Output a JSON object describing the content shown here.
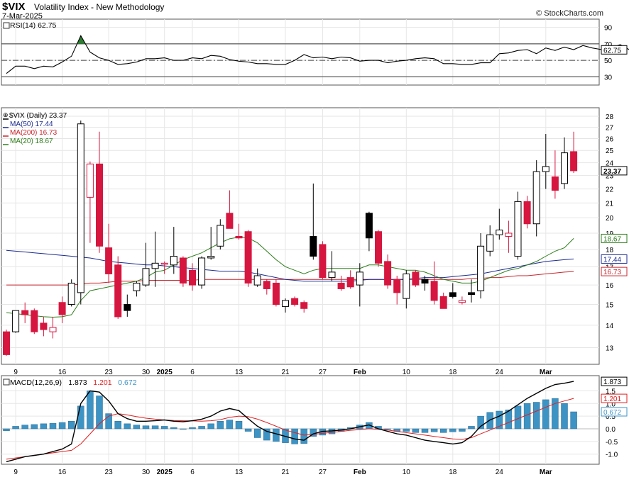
{
  "header": {
    "symbol": "$VIX",
    "name": "Volatility Index - New Methodology",
    "date": "7-Mar-2025",
    "brand": "© StockCharts.com"
  },
  "colors": {
    "up_fill": "#ffffff",
    "down_fill": "#d6163f",
    "black_candle": "#000000",
    "ma50": "#1b2a8f",
    "ma200": "#c8252c",
    "ma20": "#2e7d1c",
    "macd_hist": "#3d93c4",
    "macd_line": "#000000",
    "macd_signal": "#e02020",
    "rsi_line": "#000000",
    "rsi_fill": "#2f7d32",
    "grid": "#e6e6e6"
  },
  "chart_data": [
    {
      "type": "line",
      "panel": "RSI",
      "label": "RSI(14) 62.75",
      "ylim": [
        20,
        100
      ],
      "yticks": [
        30,
        50,
        70,
        90
      ],
      "reference_lines": [
        30,
        50,
        70
      ],
      "last_value_label": "62.75",
      "values": [
        34,
        43,
        43,
        40,
        43,
        42,
        48,
        55,
        80,
        60,
        53,
        50,
        45,
        46,
        48,
        52,
        52,
        53,
        50,
        50,
        53,
        52,
        56,
        55,
        51,
        49,
        48,
        46,
        46,
        45,
        45,
        50,
        57,
        53,
        54,
        52,
        54,
        53,
        49,
        50,
        50,
        47,
        49,
        50,
        52,
        53,
        52,
        46,
        46,
        45,
        45,
        47,
        47,
        58,
        59,
        62,
        63,
        58,
        65,
        62,
        66,
        63,
        68,
        65,
        63,
        65,
        69,
        62.75
      ]
    },
    {
      "type": "candlestick",
      "panel": "Price",
      "legend": [
        {
          "name": "$VIX (Daily) 23.37",
          "color": "#000000"
        },
        {
          "name": "MA(50) 17.44",
          "color": "#1b2a8f"
        },
        {
          "name": "MA(200) 16.73",
          "color": "#c8252c"
        },
        {
          "name": "MA(20) 18.67",
          "color": "#2e7d1c"
        }
      ],
      "ylim": [
        12.3,
        28.8
      ],
      "yticks": [
        13,
        14,
        15,
        16,
        17,
        18,
        19,
        20,
        21,
        22,
        23,
        24,
        25,
        26,
        27,
        28
      ],
      "log_scale": true,
      "x_labels": [
        "9",
        "16",
        "23",
        "30",
        "2025",
        "6",
        "13",
        "21",
        "27",
        "Feb",
        "10",
        "18",
        "24",
        "Mar"
      ],
      "x_label_index": [
        1,
        6,
        11,
        15,
        17,
        20,
        25,
        30,
        34,
        38,
        43,
        48,
        53,
        58
      ],
      "last_value_labels": [
        {
          "text": "23.37",
          "value": 23.37,
          "color": "#000000",
          "bold": true
        },
        {
          "text": "18.67",
          "value": 18.67,
          "color": "#2e7d1c"
        },
        {
          "text": "17.44",
          "value": 17.44,
          "color": "#1b2a8f"
        },
        {
          "text": "16.73",
          "value": 16.73,
          "color": "#c8252c"
        }
      ],
      "ohlc": [
        {
          "o": 13.7,
          "h": 13.8,
          "l": 12.65,
          "c": 12.7,
          "k": "red"
        },
        {
          "o": 13.7,
          "h": 14.7,
          "l": 13.65,
          "c": 14.7,
          "k": "up"
        },
        {
          "o": 14.5,
          "h": 15.1,
          "l": 14.1,
          "c": 14.7,
          "k": "red"
        },
        {
          "o": 14.7,
          "h": 14.8,
          "l": 13.6,
          "c": 13.7,
          "k": "red"
        },
        {
          "o": 13.8,
          "h": 14.4,
          "l": 13.5,
          "c": 14.1,
          "k": "red"
        },
        {
          "o": 13.9,
          "h": 14.4,
          "l": 13.4,
          "c": 13.7,
          "k": "upred"
        },
        {
          "o": 15.1,
          "h": 15.4,
          "l": 14.1,
          "c": 14.5,
          "k": "red"
        },
        {
          "o": 15.0,
          "h": 16.3,
          "l": 14.9,
          "c": 16.1,
          "k": "up"
        },
        {
          "o": 15.6,
          "h": 27.6,
          "l": 15.0,
          "c": 27.3,
          "k": "up"
        },
        {
          "o": 21.4,
          "h": 24.1,
          "l": 18.4,
          "c": 23.9,
          "k": "upred"
        },
        {
          "o": 23.9,
          "h": 26.6,
          "l": 17.8,
          "c": 18.2,
          "k": "red"
        },
        {
          "o": 18.1,
          "h": 19.6,
          "l": 16.1,
          "c": 16.6,
          "k": "red"
        },
        {
          "o": 17.1,
          "h": 17.6,
          "l": 14.3,
          "c": 14.4,
          "k": "red"
        },
        {
          "o": 14.7,
          "h": 15.5,
          "l": 14.4,
          "c": 15.0,
          "k": "black"
        },
        {
          "o": 15.7,
          "h": 16.2,
          "l": 15.4,
          "c": 16.1,
          "k": "up"
        },
        {
          "o": 16.0,
          "h": 18.4,
          "l": 15.9,
          "c": 16.9,
          "k": "up"
        },
        {
          "o": 16.9,
          "h": 19.1,
          "l": 15.9,
          "c": 17.2,
          "k": "up"
        },
        {
          "o": 17.2,
          "h": 17.3,
          "l": 16.6,
          "c": 17.2,
          "k": "upred"
        },
        {
          "o": 17.1,
          "h": 19.4,
          "l": 16.6,
          "c": 17.6,
          "k": "up"
        },
        {
          "o": 17.5,
          "h": 17.6,
          "l": 15.9,
          "c": 16.1,
          "k": "red"
        },
        {
          "o": 16.8,
          "h": 17.2,
          "l": 15.7,
          "c": 16.0,
          "k": "red"
        },
        {
          "o": 16.0,
          "h": 17.6,
          "l": 15.8,
          "c": 17.5,
          "k": "up"
        },
        {
          "o": 17.5,
          "h": 19.4,
          "l": 17.4,
          "c": 17.6,
          "k": "up"
        },
        {
          "o": 18.2,
          "h": 19.9,
          "l": 18.0,
          "c": 19.5,
          "k": "up"
        },
        {
          "o": 20.3,
          "h": 21.9,
          "l": 19.4,
          "c": 19.3,
          "k": "red"
        },
        {
          "o": 18.8,
          "h": 19.6,
          "l": 18.6,
          "c": 18.7,
          "k": "red"
        },
        {
          "o": 19.1,
          "h": 19.2,
          "l": 15.9,
          "c": 16.1,
          "k": "red"
        },
        {
          "o": 16.0,
          "h": 16.9,
          "l": 15.9,
          "c": 16.5,
          "k": "up"
        },
        {
          "o": 16.2,
          "h": 16.3,
          "l": 15.5,
          "c": 15.8,
          "k": "red"
        },
        {
          "o": 16.1,
          "h": 16.3,
          "l": 14.9,
          "c": 15.0,
          "k": "red"
        },
        {
          "o": 14.9,
          "h": 15.3,
          "l": 14.6,
          "c": 15.2,
          "k": "up"
        },
        {
          "o": 15.3,
          "h": 15.4,
          "l": 14.9,
          "c": 15.0,
          "k": "red"
        },
        {
          "o": 15.1,
          "h": 15.2,
          "l": 14.6,
          "c": 14.8,
          "k": "red"
        },
        {
          "o": 17.6,
          "h": 22.4,
          "l": 17.4,
          "c": 18.8,
          "k": "black"
        },
        {
          "o": 18.3,
          "h": 18.5,
          "l": 16.3,
          "c": 16.4,
          "k": "red"
        },
        {
          "o": 16.4,
          "h": 17.9,
          "l": 16.2,
          "c": 16.7,
          "k": "up"
        },
        {
          "o": 16.1,
          "h": 16.5,
          "l": 15.7,
          "c": 15.8,
          "k": "red"
        },
        {
          "o": 16.4,
          "h": 16.8,
          "l": 15.8,
          "c": 15.9,
          "k": "red"
        },
        {
          "o": 16.0,
          "h": 17.2,
          "l": 14.9,
          "c": 16.7,
          "k": "up"
        },
        {
          "o": 18.7,
          "h": 20.4,
          "l": 17.9,
          "c": 20.3,
          "k": "black"
        },
        {
          "o": 19.1,
          "h": 19.2,
          "l": 17.0,
          "c": 17.2,
          "k": "red"
        },
        {
          "o": 17.3,
          "h": 17.7,
          "l": 15.8,
          "c": 16.0,
          "k": "red"
        },
        {
          "o": 16.3,
          "h": 16.5,
          "l": 15.0,
          "c": 15.6,
          "k": "red"
        },
        {
          "o": 15.3,
          "h": 16.8,
          "l": 14.8,
          "c": 16.6,
          "k": "up"
        },
        {
          "o": 16.7,
          "h": 16.8,
          "l": 15.9,
          "c": 16.0,
          "k": "red"
        },
        {
          "o": 16.3,
          "h": 16.5,
          "l": 15.7,
          "c": 16.1,
          "k": "black"
        },
        {
          "o": 16.2,
          "h": 17.3,
          "l": 15.0,
          "c": 15.2,
          "k": "red"
        },
        {
          "o": 15.4,
          "h": 15.6,
          "l": 14.8,
          "c": 14.8,
          "k": "red"
        },
        {
          "o": 15.4,
          "h": 16.1,
          "l": 15.3,
          "c": 15.6,
          "k": "black"
        },
        {
          "o": 15.2,
          "h": 15.4,
          "l": 15.0,
          "c": 15.1,
          "k": "upred"
        },
        {
          "o": 15.5,
          "h": 16.3,
          "l": 15.1,
          "c": 15.6,
          "k": "black"
        },
        {
          "o": 15.7,
          "h": 19.0,
          "l": 15.3,
          "c": 18.2,
          "k": "up"
        },
        {
          "o": 17.9,
          "h": 19.5,
          "l": 17.6,
          "c": 18.9,
          "k": "up"
        },
        {
          "o": 18.9,
          "h": 20.6,
          "l": 18.6,
          "c": 19.2,
          "k": "up"
        },
        {
          "o": 19.0,
          "h": 19.8,
          "l": 17.8,
          "c": 18.8,
          "k": "upred"
        },
        {
          "o": 17.6,
          "h": 21.8,
          "l": 17.4,
          "c": 21.1,
          "k": "up"
        },
        {
          "o": 21.1,
          "h": 21.5,
          "l": 19.3,
          "c": 19.6,
          "k": "red"
        },
        {
          "o": 19.6,
          "h": 24.2,
          "l": 18.8,
          "c": 23.3,
          "k": "up"
        },
        {
          "o": 23.3,
          "h": 26.4,
          "l": 22.0,
          "c": 23.7,
          "k": "up"
        },
        {
          "o": 22.9,
          "h": 25.0,
          "l": 21.3,
          "c": 21.9,
          "k": "red"
        },
        {
          "o": 22.4,
          "h": 26.1,
          "l": 22.0,
          "c": 24.8,
          "k": "up"
        },
        {
          "o": 24.9,
          "h": 26.6,
          "l": 23.2,
          "c": 23.37,
          "k": "red"
        }
      ],
      "ma20": [
        14.6,
        14.55,
        14.5,
        14.45,
        14.4,
        14.38,
        14.4,
        14.5,
        15.2,
        15.7,
        15.8,
        15.9,
        16.0,
        16.1,
        16.2,
        16.4,
        16.7,
        16.8,
        17.1,
        17.4,
        17.6,
        17.8,
        18.1,
        18.4,
        18.65,
        18.75,
        18.7,
        18.4,
        17.9,
        17.4,
        17.0,
        16.8,
        16.6,
        16.8,
        16.9,
        16.9,
        16.9,
        16.9,
        16.9,
        17.1,
        17.1,
        17.0,
        16.9,
        16.8,
        16.8,
        16.7,
        16.5,
        16.3,
        16.2,
        16.1,
        16.1,
        16.2,
        16.4,
        16.6,
        16.8,
        16.9,
        17.1,
        17.3,
        17.6,
        17.9,
        18.1,
        18.67
      ],
      "ma50": [
        17.95,
        17.9,
        17.85,
        17.8,
        17.75,
        17.7,
        17.65,
        17.6,
        17.55,
        17.5,
        17.4,
        17.3,
        17.25,
        17.2,
        17.15,
        17.1,
        17.1,
        17.05,
        17.0,
        16.95,
        16.9,
        16.85,
        16.8,
        16.75,
        16.75,
        16.75,
        16.7,
        16.6,
        16.5,
        16.4,
        16.3,
        16.25,
        16.2,
        16.2,
        16.2,
        16.2,
        16.2,
        16.2,
        16.25,
        16.3,
        16.3,
        16.3,
        16.3,
        16.3,
        16.35,
        16.4,
        16.4,
        16.4,
        16.45,
        16.5,
        16.55,
        16.6,
        16.7,
        16.8,
        16.9,
        17.0,
        17.1,
        17.2,
        17.3,
        17.35,
        17.4,
        17.44
      ],
      "ma200": [
        16.0,
        16.0,
        16.0,
        16.0,
        16.0,
        16.0,
        16.0,
        16.0,
        16.05,
        16.1,
        16.1,
        16.15,
        16.2,
        16.2,
        16.2,
        16.25,
        16.25,
        16.25,
        16.25,
        16.25,
        16.25,
        16.3,
        16.3,
        16.3,
        16.3,
        16.3,
        16.3,
        16.3,
        16.3,
        16.3,
        16.3,
        16.3,
        16.3,
        16.3,
        16.3,
        16.3,
        16.3,
        16.3,
        16.3,
        16.3,
        16.3,
        16.3,
        16.3,
        16.3,
        16.3,
        16.3,
        16.3,
        16.3,
        16.3,
        16.3,
        16.35,
        16.35,
        16.4,
        16.4,
        16.45,
        16.5,
        16.5,
        16.55,
        16.6,
        16.65,
        16.7,
        16.73
      ]
    },
    {
      "type": "bar",
      "panel": "MACD",
      "label_prefix": "MACD(12,26,9)",
      "label_values": [
        {
          "text": "1.873",
          "color": "#000000"
        },
        {
          "text": "1.201",
          "color": "#e02020"
        },
        {
          "text": "0.672",
          "color": "#3d93c4"
        }
      ],
      "ylim": [
        -1.4,
        2.1
      ],
      "yticks": [
        -1.0,
        -0.5,
        0.0,
        0.5,
        1.0,
        1.5
      ],
      "ytick_labels": [
        "-1.0",
        "-0.5",
        "0.0",
        "0.5",
        "1.0",
        "1.5"
      ],
      "last_value_labels": [
        {
          "text": "1.873",
          "value": 1.873,
          "color": "#000000"
        },
        {
          "text": "1.201",
          "value": 1.201,
          "color": "#e02020"
        },
        {
          "text": "0.672",
          "value": 0.672,
          "color": "#3d93c4"
        }
      ],
      "x_labels": [
        "9",
        "16",
        "23",
        "30",
        "2025",
        "6",
        "13",
        "21",
        "27",
        "Feb",
        "10",
        "18",
        "24",
        "Mar"
      ],
      "x_label_index": [
        1,
        6,
        11,
        15,
        17,
        20,
        25,
        30,
        34,
        38,
        43,
        48,
        53,
        58
      ],
      "histogram": [
        -0.08,
        0.1,
        0.15,
        0.17,
        0.2,
        0.22,
        0.25,
        0.3,
        0.9,
        1.5,
        1.3,
        0.6,
        0.3,
        0.2,
        0.15,
        0.12,
        0.12,
        0.1,
        0.05,
        -0.02,
        0.05,
        0.1,
        0.2,
        0.3,
        0.35,
        0.3,
        -0.1,
        -0.35,
        -0.45,
        -0.5,
        -0.55,
        -0.6,
        -0.58,
        -0.3,
        -0.25,
        -0.2,
        -0.1,
        0.05,
        0.15,
        0.25,
        0.1,
        0.0,
        -0.1,
        -0.1,
        -0.15,
        -0.15,
        -0.12,
        -0.15,
        -0.12,
        -0.1,
        0.1,
        0.5,
        0.65,
        0.7,
        0.75,
        0.9,
        1.0,
        1.05,
        1.15,
        1.2,
        1.0,
        0.672
      ],
      "macd_line": [
        -1.3,
        -1.2,
        -1.1,
        -1.05,
        -1.0,
        -0.9,
        -0.8,
        -0.6,
        1.0,
        1.5,
        1.45,
        1.1,
        0.6,
        0.4,
        0.3,
        0.3,
        0.32,
        0.35,
        0.3,
        0.28,
        0.32,
        0.38,
        0.5,
        0.7,
        0.8,
        0.72,
        0.4,
        0.1,
        -0.1,
        -0.2,
        -0.3,
        -0.4,
        -0.45,
        -0.2,
        -0.1,
        -0.08,
        -0.05,
        0.0,
        0.08,
        0.15,
        0.0,
        -0.1,
        -0.2,
        -0.25,
        -0.35,
        -0.45,
        -0.5,
        -0.55,
        -0.6,
        -0.55,
        -0.3,
        0.1,
        0.35,
        0.5,
        0.7,
        0.95,
        1.2,
        1.4,
        1.6,
        1.75,
        1.8,
        1.873
      ],
      "signal_line": [
        -1.2,
        -1.15,
        -1.1,
        -1.05,
        -1.0,
        -0.95,
        -0.9,
        -0.85,
        -0.6,
        -0.2,
        0.2,
        0.5,
        0.6,
        0.55,
        0.48,
        0.42,
        0.38,
        0.35,
        0.33,
        0.32,
        0.31,
        0.3,
        0.32,
        0.36,
        0.45,
        0.5,
        0.48,
        0.38,
        0.25,
        0.1,
        -0.05,
        -0.15,
        -0.25,
        -0.22,
        -0.18,
        -0.14,
        -0.1,
        -0.06,
        -0.03,
        0.0,
        -0.02,
        -0.05,
        -0.1,
        -0.15,
        -0.2,
        -0.25,
        -0.3,
        -0.35,
        -0.4,
        -0.42,
        -0.35,
        -0.2,
        -0.05,
        0.1,
        0.25,
        0.4,
        0.55,
        0.7,
        0.85,
        1.0,
        1.1,
        1.201
      ]
    }
  ]
}
